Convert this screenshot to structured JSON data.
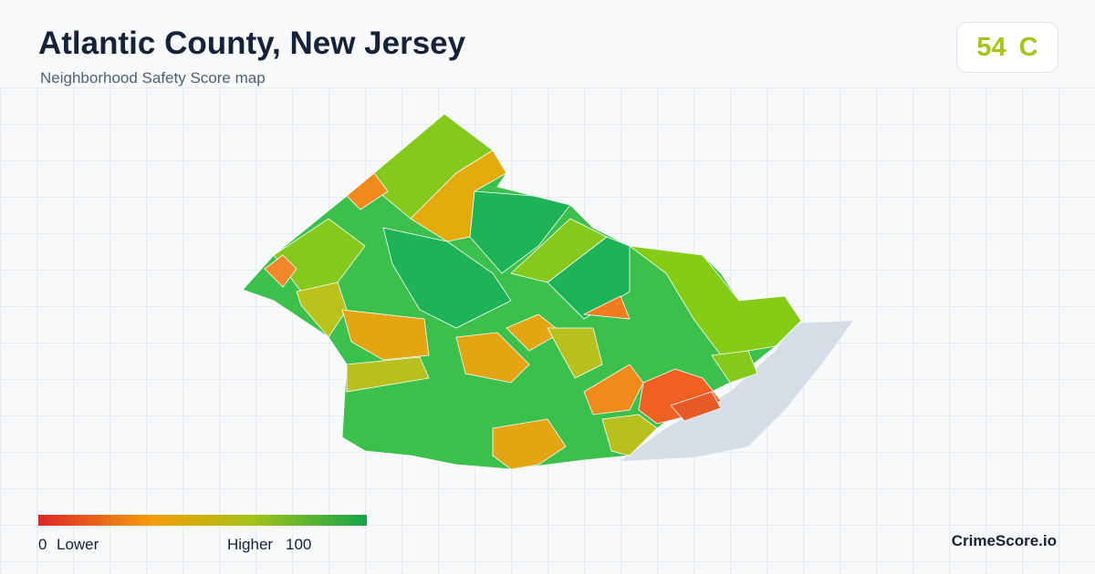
{
  "header": {
    "title": "Atlantic County, New Jersey",
    "subtitle": "Neighborhood Safety Score map"
  },
  "score": {
    "value": 54,
    "grade": "C"
  },
  "legend": {
    "min": 0,
    "min_label": "Lower",
    "max_label": "Higher",
    "max": 100
  },
  "footer": {
    "brand": "CrimeScore.io"
  }
}
